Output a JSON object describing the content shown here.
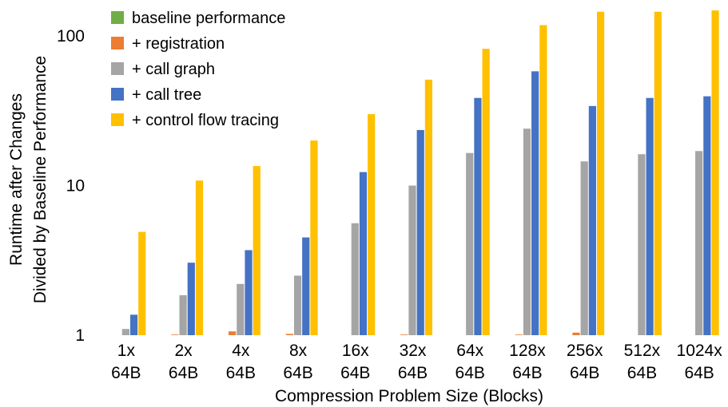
{
  "chart_data": {
    "type": "bar",
    "scale": "log",
    "ylim": [
      1,
      150
    ],
    "yticks": [
      {
        "value": 1,
        "label": "1"
      },
      {
        "value": 10,
        "label": "10"
      },
      {
        "value": 100,
        "label": "100"
      }
    ],
    "xlabel": "Compression Problem Size (Blocks)",
    "ylabel_lines": [
      "Runtime after Changes",
      "Divided by Baseline Performance"
    ],
    "categories": [
      {
        "line1": "1x",
        "line2": "64B"
      },
      {
        "line1": "2x",
        "line2": "64B"
      },
      {
        "line1": "4x",
        "line2": "64B"
      },
      {
        "line1": "8x",
        "line2": "64B"
      },
      {
        "line1": "16x",
        "line2": "64B"
      },
      {
        "line1": "32x",
        "line2": "64B"
      },
      {
        "line1": "64x",
        "line2": "64B"
      },
      {
        "line1": "128x",
        "line2": "64B"
      },
      {
        "line1": "256x",
        "line2": "64B"
      },
      {
        "line1": "512x",
        "line2": "64B"
      },
      {
        "line1": "1024x",
        "line2": "64B"
      }
    ],
    "legend_position": "top-left",
    "grid": false,
    "series": [
      {
        "name": "baseline performance",
        "color": "#70ad47",
        "values": [
          1,
          1,
          1,
          1,
          1,
          1,
          1,
          1,
          1,
          1,
          1
        ]
      },
      {
        "name": "+ registration",
        "color": "#ed7d31",
        "values": [
          1,
          1.01,
          1.06,
          1.02,
          1,
          1.01,
          1,
          1.01,
          1.04,
          1,
          1
        ]
      },
      {
        "name": "+ call graph",
        "color": "#a5a5a5",
        "values": [
          1.1,
          1.85,
          2.2,
          2.5,
          5.6,
          10,
          16.5,
          24,
          14.5,
          16.2,
          17
        ]
      },
      {
        "name": "+ call tree",
        "color": "#4472c4",
        "values": [
          1.37,
          3.05,
          3.7,
          4.5,
          12.3,
          23.5,
          38.5,
          58,
          34,
          38.5,
          39.5
        ]
      },
      {
        "name": "+ control flow tracing",
        "color": "#ffc000",
        "values": [
          4.9,
          10.8,
          13.5,
          20,
          30,
          51,
          82,
          118,
          145,
          145,
          148
        ]
      }
    ]
  }
}
